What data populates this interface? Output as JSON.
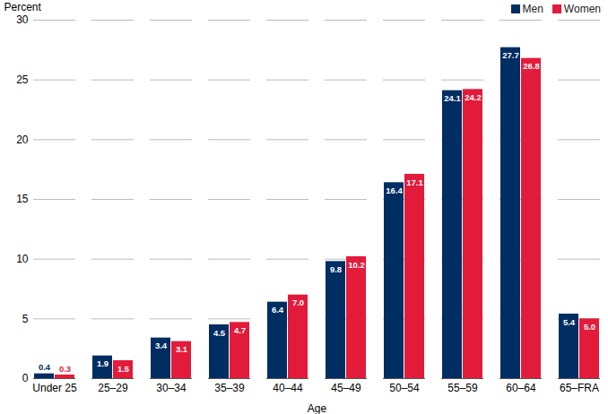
{
  "chart_data": {
    "type": "bar",
    "x_label": "Age",
    "y_label": "Percent",
    "categories": [
      "Under 25",
      "25–29",
      "30–34",
      "35–39",
      "40–44",
      "45–49",
      "50–54",
      "55–59",
      "60–64",
      "65–FRA"
    ],
    "series": [
      {
        "name": "Men",
        "color": "#002d62",
        "values": [
          0.4,
          1.9,
          3.4,
          4.5,
          6.4,
          9.8,
          16.4,
          24.1,
          27.7,
          5.4
        ],
        "value_labels": [
          "0.4",
          "1.9",
          "3.4",
          "4.5",
          "6.4",
          "9.8",
          "16.4",
          "24.1",
          "27.7",
          "5.4"
        ]
      },
      {
        "name": "Women",
        "color": "#e31b3b",
        "values": [
          0.3,
          1.5,
          3.1,
          4.7,
          7,
          10.2,
          17.1,
          24.2,
          26.8,
          5
        ],
        "value_labels": [
          "0.3",
          "1.5",
          "3.1",
          "4.7",
          "7.0",
          "10.2",
          "17.1",
          "24.2",
          "26.8",
          "5.0"
        ]
      }
    ],
    "ylim": [
      0,
      30
    ],
    "yticks": [
      0,
      5,
      10,
      15,
      20,
      25,
      30
    ],
    "grid": true,
    "legend": "top-right",
    "data_labels": true
  }
}
